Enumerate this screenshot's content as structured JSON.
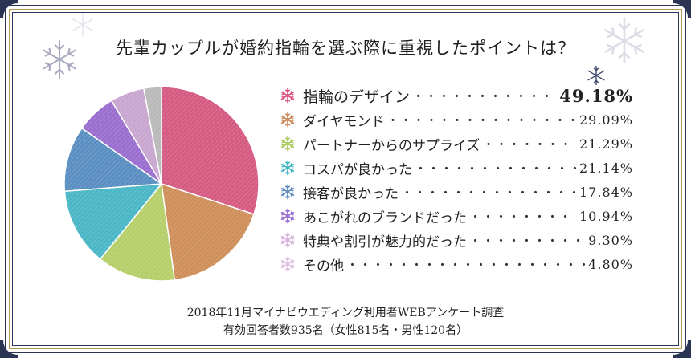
{
  "title": "先輩カップルが婚約指輪を選ぶ際に重視したポイントは？",
  "colors": {
    "frame_navy": "#2b3553",
    "frame_gold": "#b99a55"
  },
  "chart_data": {
    "type": "pie",
    "categories": [
      "指輪のデザイン",
      "ダイヤモンド",
      "パートナーからのサプライズ",
      "コスパが良かった",
      "接客が良かった",
      "あこがれのブランドだった",
      "特典や割引が魅力的だった",
      "その他"
    ],
    "values": [
      49.18,
      29.09,
      21.29,
      21.14,
      17.84,
      10.94,
      9.3,
      4.8
    ],
    "value_labels": [
      "49.18%",
      "29.09%",
      "21.29%",
      "21.14%",
      "17.84%",
      "10.94%",
      "9.30%",
      "4.80%"
    ],
    "colors": [
      "#d65b82",
      "#cf8f5b",
      "#b7cf6a",
      "#4bb7c6",
      "#5b8fc2",
      "#9a6fcf",
      "#c9a6cf",
      "#b9b9b9"
    ],
    "marker_colors": [
      "#d9517d",
      "#c98a5a",
      "#a9c95c",
      "#3fb5c4",
      "#5b89bd",
      "#9a6bd0",
      "#d7b0de",
      "#dfbfe3"
    ],
    "legend_placement": "right"
  },
  "footer": {
    "line1": "2018年11月マイナビウエディング利用者WEBアンケート調査",
    "line2": "有効回答者数935名（女性815名・男性120名）"
  }
}
